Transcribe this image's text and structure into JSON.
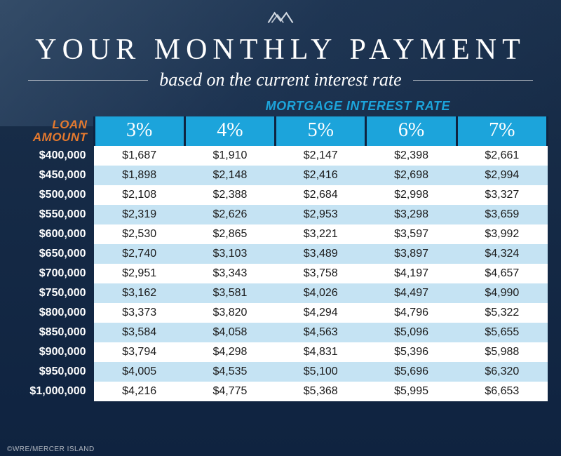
{
  "header": {
    "title": "YOUR MONTHLY PAYMENT",
    "subtitle": "based on the current interest rate"
  },
  "axis": {
    "top_label": "MORTGAGE INTEREST RATE",
    "left_label_line1": "LOAN",
    "left_label_line2": "AMOUNT"
  },
  "table": {
    "type": "table",
    "rate_headers": [
      "3%",
      "4%",
      "5%",
      "6%",
      "7%"
    ],
    "loan_amounts": [
      "$400,000",
      "$450,000",
      "$500,000",
      "$550,000",
      "$600,000",
      "$650,000",
      "$700,000",
      "$750,000",
      "$800,000",
      "$850,000",
      "$900,000",
      "$950,000",
      "$1,000,000"
    ],
    "rows": [
      [
        "$1,687",
        "$1,910",
        "$2,147",
        "$2,398",
        "$2,661"
      ],
      [
        "$1,898",
        "$2,148",
        "$2,416",
        "$2,698",
        "$2,994"
      ],
      [
        "$2,108",
        "$2,388",
        "$2,684",
        "$2,998",
        "$3,327"
      ],
      [
        "$2,319",
        "$2,626",
        "$2,953",
        "$3,298",
        "$3,659"
      ],
      [
        "$2,530",
        "$2,865",
        "$3,221",
        "$3,597",
        "$3,992"
      ],
      [
        "$2,740",
        "$3,103",
        "$3,489",
        "$3,897",
        "$4,324"
      ],
      [
        "$2,951",
        "$3,343",
        "$3,758",
        "$4,197",
        "$4,657"
      ],
      [
        "$3,162",
        "$3,581",
        "$4,026",
        "$4,497",
        "$4,990"
      ],
      [
        "$3,373",
        "$3,820",
        "$4,294",
        "$4,796",
        "$5,322"
      ],
      [
        "$3,584",
        "$4,058",
        "$4,563",
        "$5,096",
        "$5,655"
      ],
      [
        "$3,794",
        "$4,298",
        "$4,831",
        "$5,396",
        "$5,988"
      ],
      [
        "$4,005",
        "$4,535",
        "$5,100",
        "$5,696",
        "$6,320"
      ],
      [
        "$4,216",
        "$4,775",
        "$5,368",
        "$5,995",
        "$6,653"
      ]
    ],
    "header_bg": "#1ca4db",
    "header_text_color": "#ffffff",
    "row_even_bg": "#ffffff",
    "row_odd_bg": "#c5e3f3",
    "loan_amount_color": "#ffffff",
    "axis_top_color": "#1ca4db",
    "axis_left_color": "#e67a2e",
    "page_bg_top": "#1a2f4a",
    "page_bg_bottom": "#0f2340",
    "title_fontsize": 42,
    "subtitle_fontsize": 26,
    "header_fontsize": 28,
    "cell_fontsize": 16
  },
  "footer": {
    "text": "©WRE/MERCER ISLAND"
  }
}
